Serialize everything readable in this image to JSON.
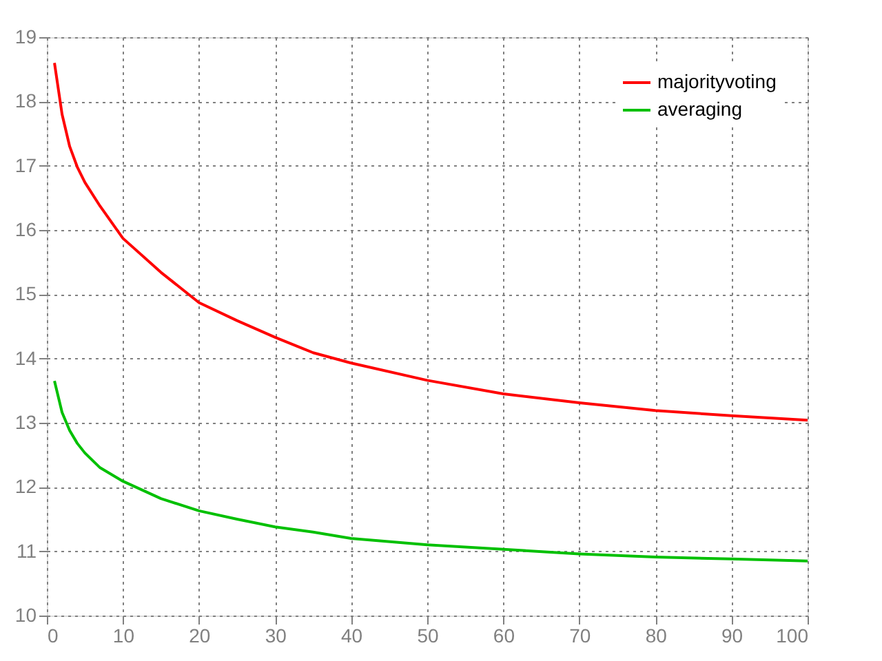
{
  "chart_data": {
    "type": "line",
    "x": [
      1,
      2,
      3,
      4,
      5,
      7,
      10,
      15,
      20,
      25,
      30,
      35,
      40,
      50,
      60,
      70,
      80,
      90,
      100
    ],
    "series": [
      {
        "name": "majorityvoting",
        "color": "#ff0000",
        "values": [
          18.6,
          17.8,
          17.3,
          16.98,
          16.74,
          16.37,
          15.87,
          15.34,
          14.87,
          14.59,
          14.33,
          14.09,
          13.93,
          13.66,
          13.45,
          13.31,
          13.19,
          13.11,
          13.04
        ]
      },
      {
        "name": "averaging",
        "color": "#00c000",
        "values": [
          13.65,
          13.16,
          12.88,
          12.68,
          12.53,
          12.3,
          12.09,
          11.82,
          11.63,
          11.5,
          11.38,
          11.3,
          11.2,
          11.1,
          11.03,
          10.96,
          10.91,
          10.88,
          10.85
        ]
      }
    ],
    "xlim": [
      0,
      100
    ],
    "xticks": [
      0,
      10,
      20,
      30,
      40,
      50,
      60,
      70,
      80,
      90,
      100
    ],
    "ylim": [
      10,
      19
    ],
    "yticks": [
      10,
      11,
      12,
      13,
      14,
      15,
      16,
      17,
      18,
      19
    ],
    "grid": true,
    "legend": "top right",
    "marker": "none",
    "line_style": "solid"
  }
}
